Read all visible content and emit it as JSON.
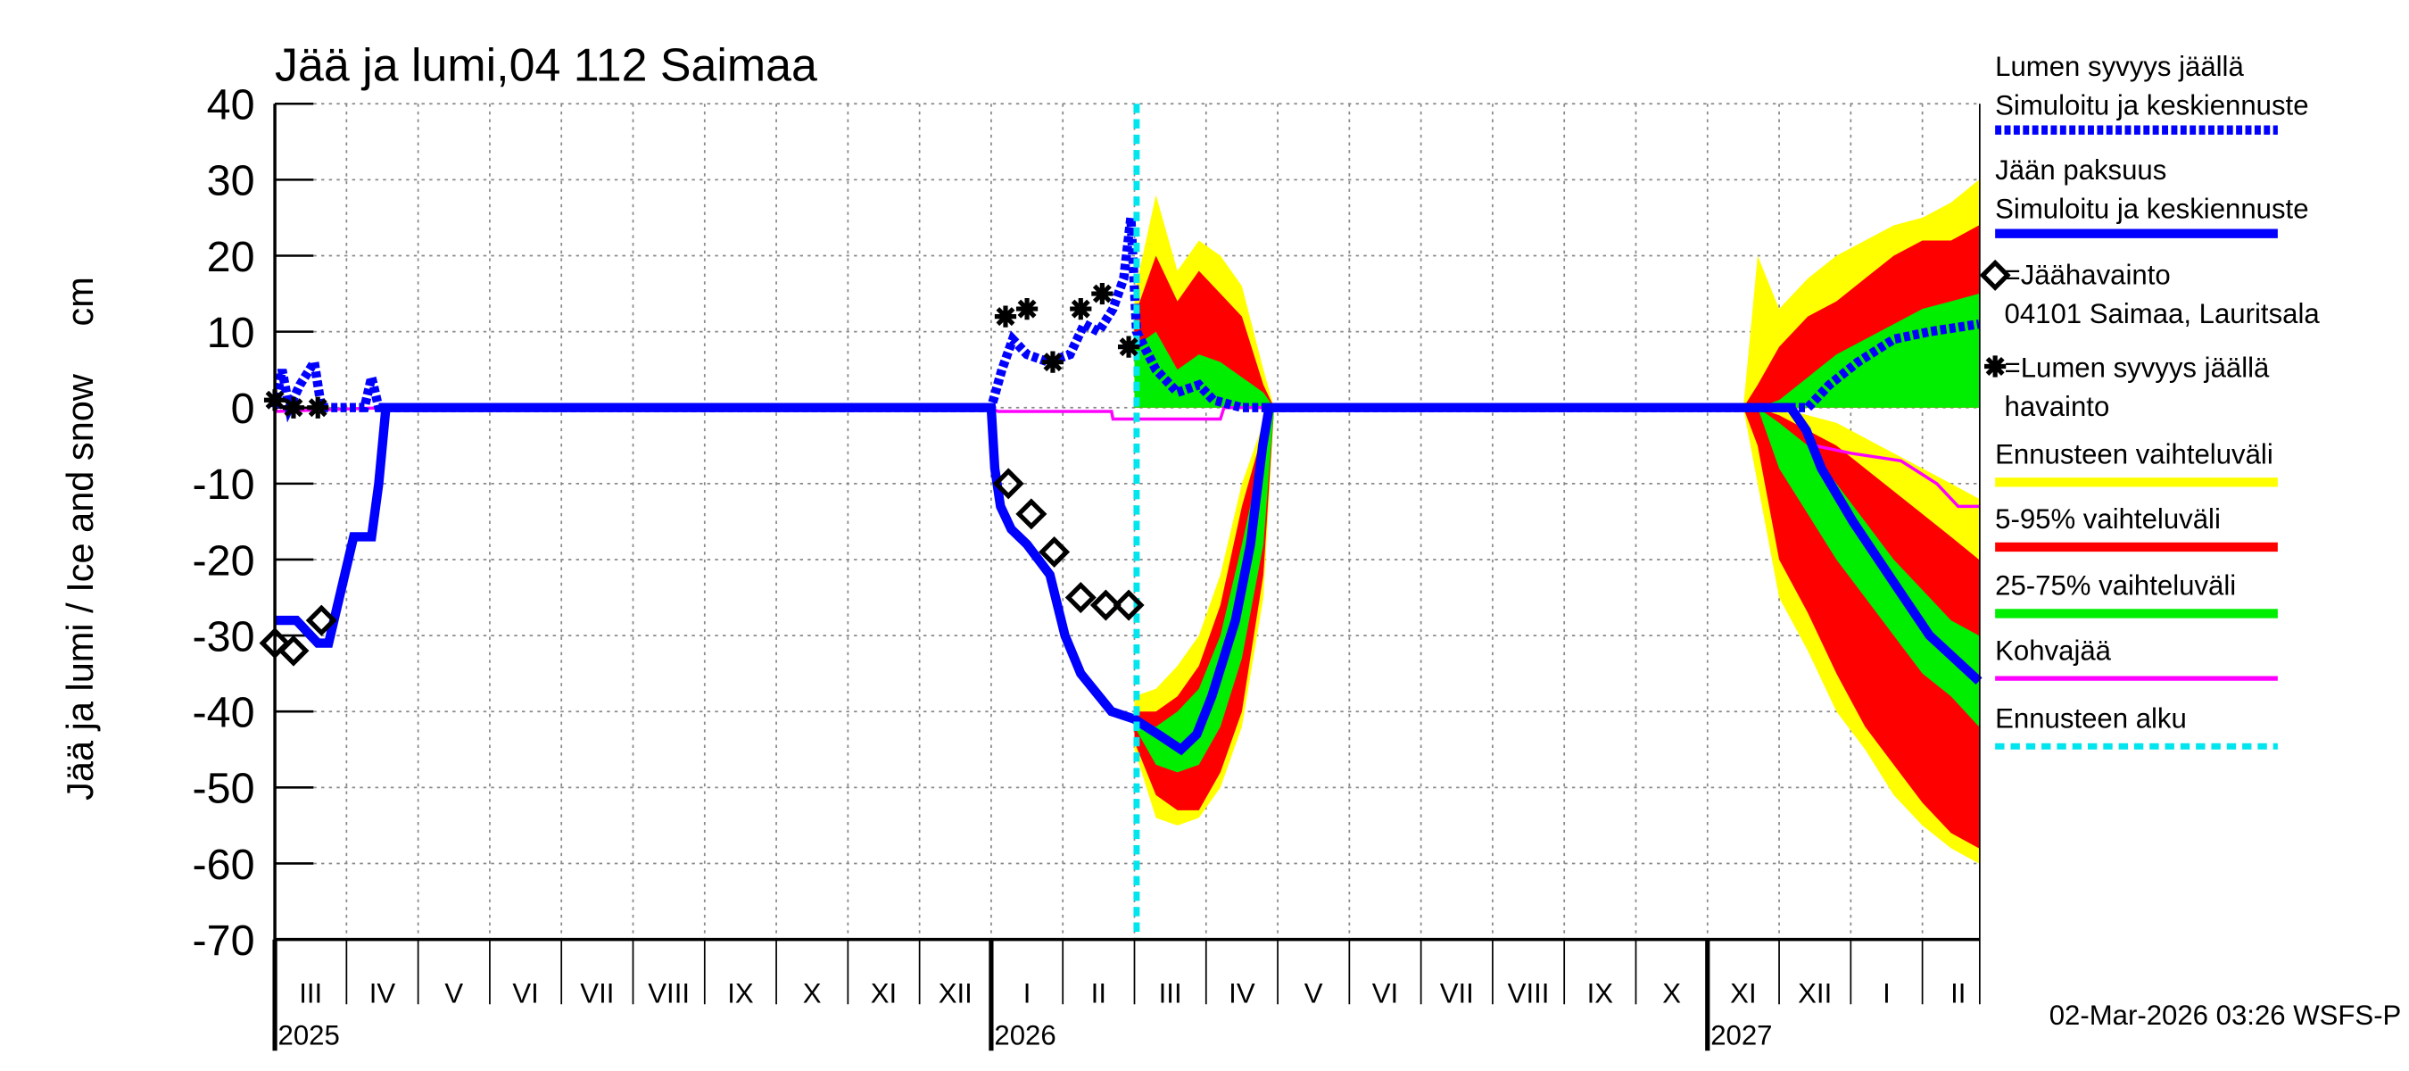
{
  "chart_data": {
    "type": "line",
    "title": "Jää ja lumi,04 112 Saimaa",
    "y_label": "Jää ja lumi / Ice and snow",
    "y_unit": "cm",
    "footer": "02-Mar-2026 03:26 WSFS-P",
    "xlim": [
      2,
      25.8
    ],
    "ylim": [
      -70,
      40
    ],
    "yticks": [
      -70,
      -60,
      -50,
      -40,
      -30,
      -20,
      -10,
      0,
      10,
      20,
      30,
      40
    ],
    "grid": true,
    "month_labels": [
      "III",
      "IV",
      "V",
      "VI",
      "VII",
      "VIII",
      "IX",
      "X",
      "XI",
      "XII",
      "I",
      "II",
      "III",
      "IV",
      "V",
      "VI",
      "VII",
      "VIII",
      "IX",
      "X",
      "XI",
      "XII",
      "I",
      "II"
    ],
    "xticks": [
      {
        "value": 2,
        "label": "2025"
      },
      {
        "value": 12,
        "label": "2026"
      },
      {
        "value": 22,
        "label": "2027"
      }
    ],
    "bands": [
      {
        "name": [
          "Ennusteen vaihteluväli"
        ],
        "color": "#ffff00",
        "areas": [
          {
            "x": [
              14.0,
              14.3,
              14.6,
              14.9,
              15.2,
              15.5,
              15.8,
              15.95
            ],
            "high": [
              15,
              28,
              18,
              22,
              20,
              16,
              5,
              0
            ],
            "low": [
              0,
              0,
              0,
              0,
              0,
              0,
              0,
              0
            ]
          },
          {
            "x": [
              14.0,
              14.3,
              14.6,
              14.9,
              15.2,
              15.5,
              15.8,
              15.95
            ],
            "high": [
              -38,
              -37,
              -34,
              -30,
              -22,
              -10,
              -2,
              0
            ],
            "low": [
              -45,
              -54,
              -55,
              -54,
              -50,
              -42,
              -25,
              0
            ]
          },
          {
            "x": [
              22.5,
              22.7,
              23.0,
              23.4,
              23.8,
              24.2,
              24.6,
              25.0,
              25.4,
              25.79
            ],
            "high": [
              0,
              20,
              13,
              17,
              20,
              22,
              24,
              25,
              27,
              30
            ],
            "low": [
              0,
              0,
              0,
              0,
              0,
              0,
              0,
              0,
              0,
              0
            ]
          },
          {
            "x": [
              22.5,
              22.7,
              23.0,
              23.4,
              23.8,
              24.2,
              24.6,
              25.0,
              25.4,
              25.79
            ],
            "high": [
              0,
              0,
              0,
              -1,
              -2,
              -4,
              -6,
              -8,
              -10,
              -12
            ],
            "low": [
              0,
              -10,
              -25,
              -32,
              -40,
              -45,
              -51,
              -55,
              -58,
              -60
            ]
          }
        ]
      },
      {
        "name": [
          "5-95% vaihteluväli"
        ],
        "color": "#ff0000",
        "areas": [
          {
            "x": [
              14.0,
              14.3,
              14.6,
              14.9,
              15.2,
              15.5,
              15.8,
              15.95
            ],
            "high": [
              12,
              20,
              14,
              18,
              15,
              12,
              3,
              0
            ],
            "low": [
              0,
              0,
              0,
              0,
              0,
              0,
              0,
              0
            ]
          },
          {
            "x": [
              14.0,
              14.3,
              14.6,
              14.9,
              15.2,
              15.5,
              15.8,
              15.95
            ],
            "high": [
              -40,
              -40,
              -38,
              -34,
              -26,
              -13,
              -3,
              0
            ],
            "low": [
              -44,
              -51,
              -53,
              -53,
              -48,
              -40,
              -22,
              0
            ]
          },
          {
            "x": [
              22.5,
              22.7,
              23.0,
              23.4,
              23.8,
              24.2,
              24.6,
              25.0,
              25.4,
              25.79
            ],
            "high": [
              0,
              3,
              8,
              12,
              14,
              17,
              20,
              22,
              22,
              24
            ],
            "low": [
              0,
              0,
              0,
              0,
              0,
              0,
              0,
              0,
              0,
              0
            ]
          },
          {
            "x": [
              22.5,
              22.7,
              23.0,
              23.4,
              23.8,
              24.2,
              24.6,
              25.0,
              25.4,
              25.79
            ],
            "high": [
              0,
              0,
              -1,
              -3,
              -5,
              -8,
              -11,
              -14,
              -17,
              -20
            ],
            "low": [
              0,
              -5,
              -20,
              -27,
              -35,
              -42,
              -47,
              -52,
              -56,
              -58
            ]
          }
        ]
      },
      {
        "name": [
          "25-75% vaihteluväli"
        ],
        "color": "#00ee00",
        "areas": [
          {
            "x": [
              14.0,
              14.3,
              14.6,
              14.9,
              15.2,
              15.5,
              15.8,
              15.95
            ],
            "high": [
              8,
              10,
              5,
              7,
              6,
              4,
              2,
              0
            ],
            "low": [
              0,
              0,
              0,
              0,
              0,
              0,
              0,
              0
            ]
          },
          {
            "x": [
              14.0,
              14.3,
              14.6,
              14.9,
              15.2,
              15.5,
              15.8,
              15.95
            ],
            "high": [
              -41,
              -42,
              -40,
              -37,
              -30,
              -18,
              -5,
              0
            ],
            "low": [
              -42,
              -47,
              -48,
              -47,
              -42,
              -33,
              -18,
              0
            ]
          },
          {
            "x": [
              22.5,
              22.7,
              23.0,
              23.4,
              23.8,
              24.2,
              24.6,
              25.0,
              25.4,
              25.79
            ],
            "high": [
              0,
              0,
              1,
              4,
              7,
              9,
              11,
              13,
              14,
              15
            ],
            "low": [
              0,
              0,
              0,
              0,
              0,
              0,
              0,
              0,
              0,
              0
            ]
          },
          {
            "x": [
              22.5,
              22.7,
              23.0,
              23.4,
              23.8,
              24.2,
              24.6,
              25.0,
              25.4,
              25.79
            ],
            "high": [
              0,
              0,
              -2,
              -5,
              -10,
              -15,
              -20,
              -24,
              -28,
              -30
            ],
            "low": [
              0,
              0,
              -8,
              -14,
              -20,
              -25,
              -30,
              -35,
              -38,
              -42
            ]
          }
        ]
      }
    ],
    "series": [
      {
        "name": [
          "Kohvajää"
        ],
        "color": "#ff00ff",
        "style": "thin",
        "x": [
          2.0,
          3.55,
          11.96,
          12.1,
          13.68,
          13.7,
          15.2,
          15.25,
          23.16,
          23.5,
          24.0,
          24.7,
          25.2,
          25.5,
          25.79
        ],
        "values": [
          -0.5,
          0,
          0,
          -0.5,
          -0.5,
          -1.5,
          -1.5,
          0,
          0,
          -5,
          -6,
          -7,
          -10,
          -13,
          -13
        ]
      },
      {
        "name": [
          "Jään paksuus",
          "Simuloitu ja keskiennuste"
        ],
        "color": "#0000ff",
        "style": "solid",
        "x": [
          2.0,
          2.3,
          2.6,
          2.75,
          2.9,
          3.1,
          3.35,
          3.45,
          3.55,
          12.0,
          12.05,
          12.13,
          12.28,
          12.5,
          12.82,
          13.03,
          13.25,
          13.68,
          14.0,
          14.33,
          14.65,
          14.87,
          15.08,
          15.41,
          15.62,
          15.79,
          15.88,
          23.16,
          23.38,
          23.59,
          24.03,
          24.67,
          25.1,
          25.79
        ],
        "values": [
          -28,
          -28,
          -31,
          -31,
          -25,
          -17,
          -17,
          -10,
          0,
          0,
          -8,
          -13,
          -16,
          -18,
          -22,
          -30,
          -35,
          -40,
          -41,
          -43,
          -45,
          -43,
          -38,
          -28,
          -18,
          -5,
          0,
          0,
          -3,
          -8,
          -15,
          -24,
          -30,
          -36
        ]
      },
      {
        "name": [
          "Lumen syvyys jäällä",
          "Simuloitu ja keskiennuste"
        ],
        "color": "#0000ff",
        "style": "dashed",
        "x": [
          2.0,
          2.1,
          2.2,
          2.35,
          2.55,
          2.65,
          3.25,
          3.35,
          3.45,
          12.0,
          12.15,
          12.3,
          12.5,
          12.8,
          13.1,
          13.3,
          13.5,
          13.7,
          13.85,
          13.95,
          14.03,
          14.3,
          14.6,
          14.9,
          15.1,
          15.5,
          23.1,
          23.4,
          23.7,
          24.1,
          24.6,
          25.1,
          25.79
        ],
        "values": [
          0,
          5,
          0,
          3,
          6,
          0,
          0,
          4,
          0,
          0,
          5,
          9,
          7,
          6,
          7,
          11,
          10,
          13,
          17,
          25,
          10,
          5,
          2,
          3,
          1,
          0,
          0,
          0,
          3,
          6,
          9,
          10,
          11
        ]
      }
    ],
    "observations": [
      {
        "name": [
          "=Jäähavainto",
          "04101 Saimaa, Lauritsala"
        ],
        "marker": "diamond",
        "color": "#000000",
        "x": [
          2.0,
          2.26,
          2.65,
          12.24,
          12.56,
          12.88,
          13.25,
          13.6,
          13.92
        ],
        "values": [
          -31,
          -32,
          -28,
          -10,
          -14,
          -19,
          -25,
          -26,
          -26
        ]
      },
      {
        "name": [
          "=Lumen syvyys jäällä",
          "havainto"
        ],
        "marker": "asterisk",
        "color": "#000000",
        "x": [
          2.0,
          2.26,
          2.6,
          12.2,
          12.5,
          12.86,
          13.25,
          13.55,
          13.92
        ],
        "values": [
          1,
          0,
          0,
          12,
          13,
          6,
          13,
          15,
          8
        ]
      }
    ],
    "forecast_start": {
      "name": [
        "Ennusteen alku"
      ],
      "color": "#00e5ee",
      "x": 14.03
    }
  }
}
